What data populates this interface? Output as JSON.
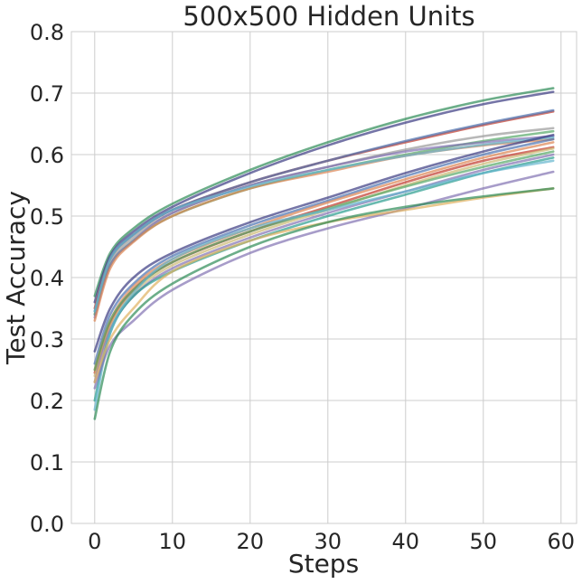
{
  "chart_data": {
    "type": "line",
    "title": "500x500 Hidden Units",
    "xlabel": "Steps",
    "ylabel": "Test Accuracy",
    "xlim": [
      -3,
      62
    ],
    "ylim": [
      0.0,
      0.8
    ],
    "xticks": [
      0,
      10,
      20,
      30,
      40,
      50,
      60
    ],
    "yticks": [
      0.0,
      0.1,
      0.2,
      0.3,
      0.4,
      0.5,
      0.6,
      0.7,
      0.8
    ],
    "xtick_labels": [
      "0",
      "10",
      "20",
      "30",
      "40",
      "50",
      "60"
    ],
    "ytick_labels": [
      "0.0",
      "0.1",
      "0.2",
      "0.3",
      "0.4",
      "0.5",
      "0.6",
      "0.7",
      "0.8"
    ],
    "grid": true,
    "legend": "none",
    "x_sample": [
      0,
      2,
      5,
      10,
      20,
      30,
      40,
      50,
      59
    ],
    "series": [
      {
        "color": "#2e8b57",
        "values": [
          0.37,
          0.44,
          0.48,
          0.52,
          0.575,
          0.62,
          0.658,
          0.688,
          0.708
        ]
      },
      {
        "color": "#3b3b82",
        "values": [
          0.36,
          0.435,
          0.475,
          0.515,
          0.57,
          0.615,
          0.652,
          0.682,
          0.702
        ]
      },
      {
        "color": "#c0392b",
        "values": [
          0.35,
          0.43,
          0.47,
          0.51,
          0.555,
          0.59,
          0.62,
          0.648,
          0.67
        ]
      },
      {
        "color": "#4c72b0",
        "values": [
          0.345,
          0.43,
          0.47,
          0.51,
          0.555,
          0.59,
          0.622,
          0.65,
          0.672
        ]
      },
      {
        "color": "#9a9a9a",
        "values": [
          0.34,
          0.425,
          0.465,
          0.505,
          0.55,
          0.58,
          0.608,
          0.63,
          0.643
        ]
      },
      {
        "color": "#55a868",
        "values": [
          0.34,
          0.42,
          0.46,
          0.5,
          0.545,
          0.575,
          0.6,
          0.622,
          0.638
        ]
      },
      {
        "color": "#8172b2",
        "values": [
          0.335,
          0.42,
          0.46,
          0.505,
          0.55,
          0.58,
          0.605,
          0.62,
          0.63
        ]
      },
      {
        "color": "#dd8452",
        "values": [
          0.33,
          0.415,
          0.458,
          0.5,
          0.545,
          0.572,
          0.598,
          0.615,
          0.625
        ]
      },
      {
        "color": "#64b5cd",
        "values": [
          0.345,
          0.43,
          0.47,
          0.51,
          0.548,
          0.575,
          0.598,
          0.616,
          0.628
        ]
      },
      {
        "color": "#3b3b82",
        "values": [
          0.28,
          0.35,
          0.4,
          0.44,
          0.49,
          0.53,
          0.57,
          0.605,
          0.632
        ]
      },
      {
        "color": "#4c72b0",
        "values": [
          0.26,
          0.34,
          0.39,
          0.435,
          0.485,
          0.525,
          0.565,
          0.6,
          0.625
        ]
      },
      {
        "color": "#dd8452",
        "values": [
          0.25,
          0.33,
          0.385,
          0.43,
          0.48,
          0.522,
          0.56,
          0.595,
          0.62
        ]
      },
      {
        "color": "#c0392b",
        "values": [
          0.245,
          0.325,
          0.38,
          0.425,
          0.475,
          0.515,
          0.555,
          0.59,
          0.612
        ]
      },
      {
        "color": "#ccb974",
        "values": [
          0.24,
          0.32,
          0.375,
          0.42,
          0.47,
          0.51,
          0.55,
          0.585,
          0.61
        ]
      },
      {
        "color": "#55a868",
        "values": [
          0.25,
          0.33,
          0.38,
          0.425,
          0.475,
          0.512,
          0.548,
          0.58,
          0.605
        ]
      },
      {
        "color": "#8172b2",
        "values": [
          0.23,
          0.315,
          0.37,
          0.415,
          0.465,
          0.505,
          0.54,
          0.575,
          0.6
        ]
      },
      {
        "color": "#2a9d8f",
        "values": [
          0.2,
          0.31,
          0.37,
          0.41,
          0.46,
          0.5,
          0.535,
          0.57,
          0.595
        ]
      },
      {
        "color": "#64b5cd",
        "values": [
          0.185,
          0.31,
          0.375,
          0.43,
          0.48,
          0.51,
          0.54,
          0.57,
          0.59
        ]
      },
      {
        "color": "#8172b2",
        "values": [
          0.22,
          0.29,
          0.33,
          0.38,
          0.44,
          0.48,
          0.512,
          0.545,
          0.572
        ]
      },
      {
        "color": "#e0b060",
        "values": [
          0.23,
          0.3,
          0.35,
          0.41,
          0.46,
          0.49,
          0.51,
          0.53,
          0.545
        ]
      },
      {
        "color": "#2e8b57",
        "values": [
          0.17,
          0.28,
          0.34,
          0.39,
          0.45,
          0.49,
          0.515,
          0.532,
          0.545
        ]
      }
    ]
  }
}
